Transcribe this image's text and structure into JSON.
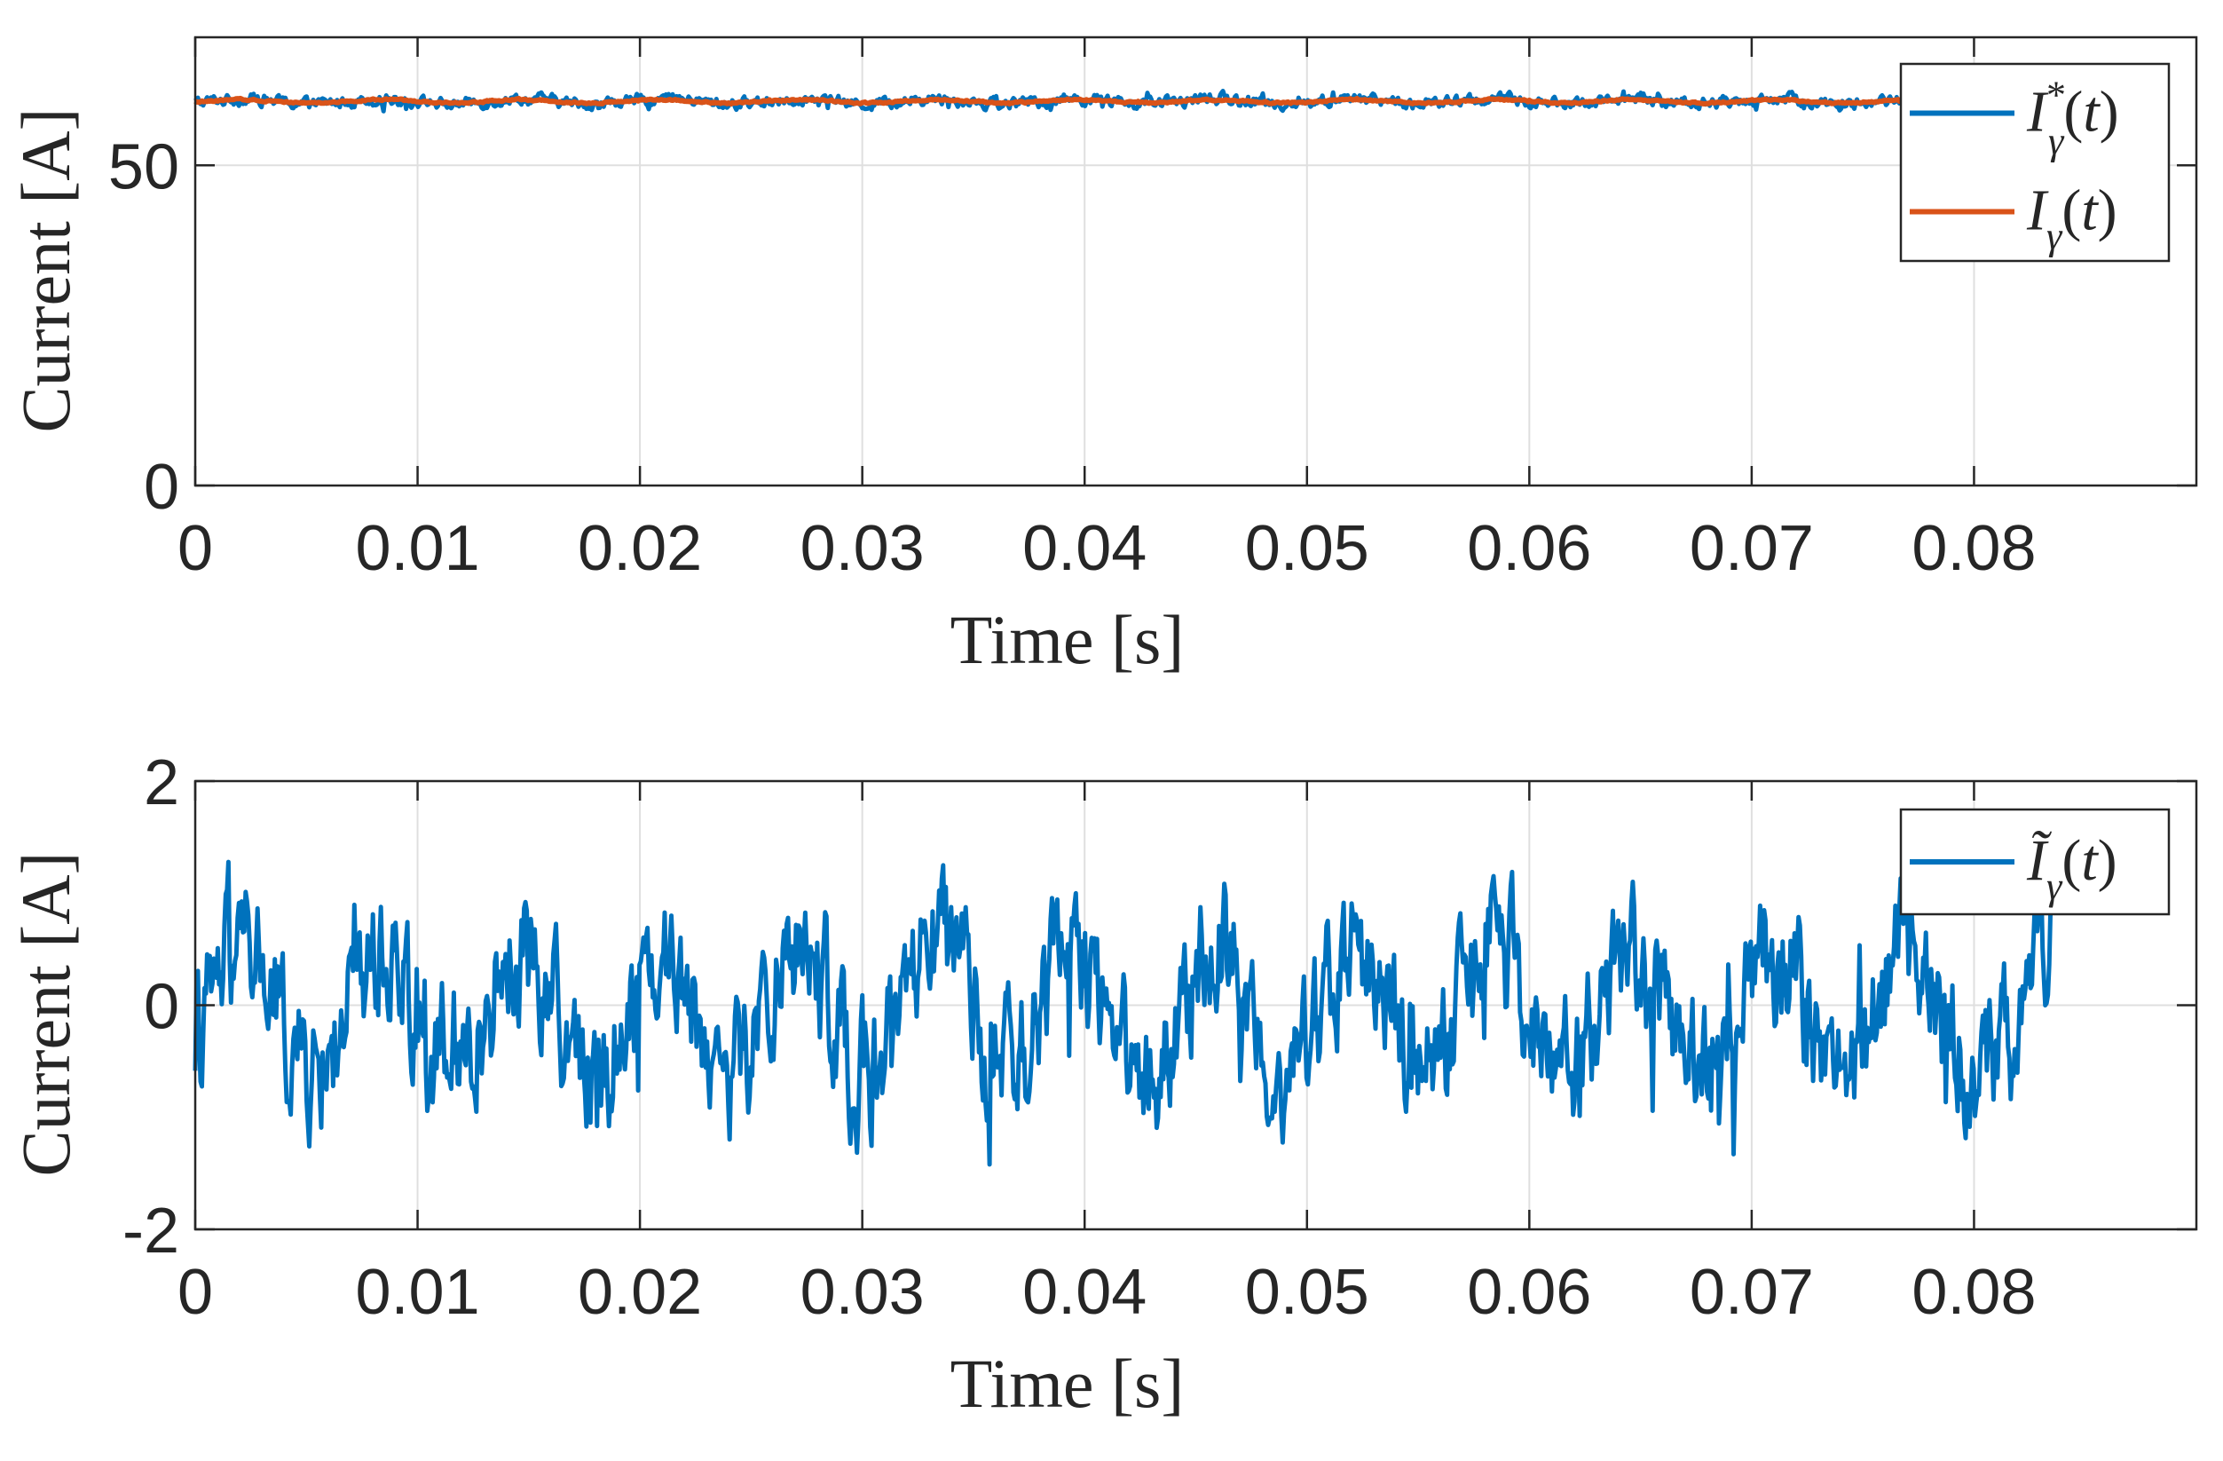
{
  "chart_data": [
    {
      "type": "line",
      "title": "",
      "xlabel": "Time [s]",
      "ylabel": "Current [A]",
      "xlim": [
        0,
        0.09
      ],
      "ylim": [
        0,
        70
      ],
      "xticks": [
        0,
        0.01,
        0.02,
        0.03,
        0.04,
        0.05,
        0.06,
        0.07,
        0.08
      ],
      "xtick_labels": [
        "0",
        "0.01",
        "0.02",
        "0.03",
        "0.04",
        "0.05",
        "0.06",
        "0.07",
        "0.08"
      ],
      "yticks": [
        0,
        50
      ],
      "ytick_labels": [
        "0",
        "50"
      ],
      "grid": true,
      "legend": "top-right",
      "series": [
        {
          "name": "I*γ(t)",
          "legend_main": "I",
          "legend_sub": "γ",
          "legend_sup": "*",
          "legend_tail": "(t)",
          "color": "#0072BD",
          "mean": 60,
          "amplitude": 0.4,
          "noise": 0.7,
          "period": 0.00625,
          "x_end": 0.0835
        },
        {
          "name": "Iγ(t)",
          "legend_main": "I",
          "legend_sub": "γ",
          "legend_sup": "",
          "legend_tail": "(t)",
          "color": "#D95319",
          "mean": 60,
          "amplitude": 0.25,
          "noise": 0.1,
          "period": 0.00625,
          "x_end": 0.0835
        }
      ]
    },
    {
      "type": "line",
      "title": "",
      "xlabel": "Time [s]",
      "ylabel": "Current [A]",
      "xlim": [
        0,
        0.09
      ],
      "ylim": [
        -2,
        2
      ],
      "xticks": [
        0,
        0.01,
        0.02,
        0.03,
        0.04,
        0.05,
        0.06,
        0.07,
        0.08
      ],
      "xtick_labels": [
        "0",
        "0.01",
        "0.02",
        "0.03",
        "0.04",
        "0.05",
        "0.06",
        "0.07",
        "0.08"
      ],
      "yticks": [
        -2,
        0,
        2
      ],
      "ytick_labels": [
        "-2",
        "0",
        "2"
      ],
      "grid": true,
      "legend": "top-right",
      "series": [
        {
          "name": "Ĩγ(t)",
          "legend_main": "Ĩ",
          "legend_sub": "γ",
          "legend_sup": "",
          "legend_tail": "(t)",
          "color": "#0072BD",
          "mean": -0.05,
          "amplitude": 0.55,
          "noise": 0.45,
          "period": 0.00625,
          "x_end": 0.0835
        }
      ]
    }
  ]
}
